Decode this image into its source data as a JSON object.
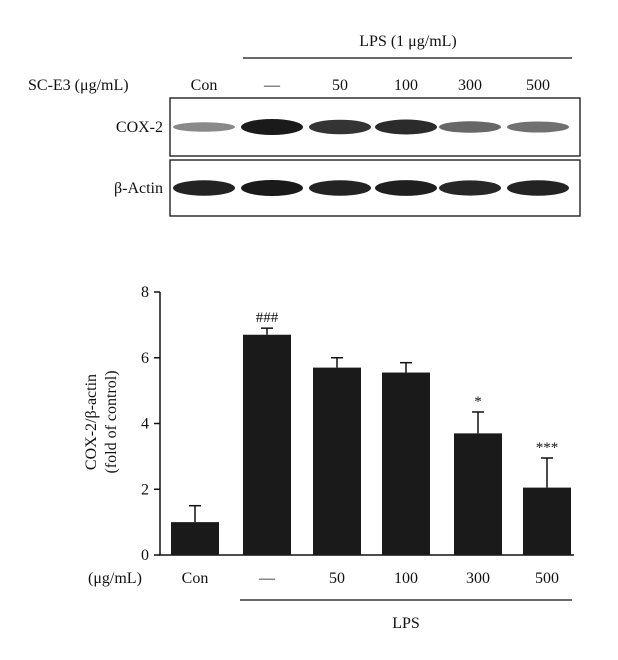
{
  "blot": {
    "lps_header": "LPS (1 μg/mL)",
    "treatment_label": "SC-E3 (μg/mL)",
    "lanes": [
      "Con",
      "—",
      "50",
      "100",
      "300",
      "500"
    ],
    "rows": [
      {
        "label": "COX-2",
        "intensity": [
          0.35,
          1.0,
          0.85,
          0.9,
          0.55,
          0.5
        ]
      },
      {
        "label": "β-Actin",
        "intensity": [
          0.95,
          1.0,
          0.95,
          0.97,
          0.92,
          0.95
        ]
      }
    ]
  },
  "chart_data": {
    "type": "bar",
    "categories": [
      "Con",
      "—",
      "50",
      "100",
      "300",
      "500"
    ],
    "values": [
      1.0,
      6.7,
      5.7,
      5.55,
      3.7,
      2.05
    ],
    "errors": [
      0.5,
      0.2,
      0.3,
      0.3,
      0.65,
      0.9
    ],
    "annotations": [
      "",
      "###",
      "",
      "",
      "*",
      "***"
    ],
    "ylabel_line1": "COX-2/β-actin",
    "ylabel_line2": "(fold of control)",
    "xlabel_prefix": "(μg/mL)",
    "group_label": "LPS",
    "ylim": [
      0,
      8
    ],
    "yticks": [
      0,
      2,
      4,
      6,
      8
    ],
    "bar_color": "#1a1a1a"
  }
}
